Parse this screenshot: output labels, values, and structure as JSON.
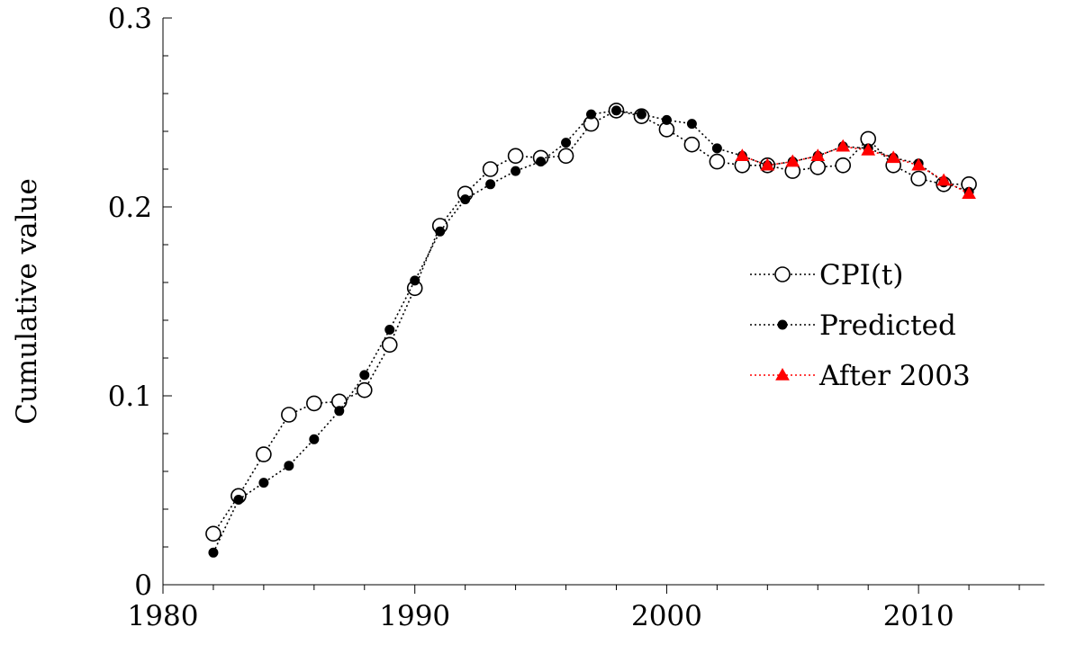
{
  "chart_data": {
    "type": "line",
    "title": "",
    "xlabel": "",
    "ylabel": "Cumulative value",
    "xlim": [
      1980,
      2015
    ],
    "ylim": [
      0,
      0.3
    ],
    "xticks": [
      1980,
      1990,
      2000,
      2010
    ],
    "xtick_labels": [
      "1980",
      "1990",
      "2000",
      "2010"
    ],
    "yticks": [
      0,
      0.1,
      0.2,
      0.3
    ],
    "ytick_labels": [
      "0",
      "0.1",
      "0.2",
      "0.3"
    ],
    "grid": false,
    "legend_position": "right",
    "series": [
      {
        "name": "CPI(t)",
        "marker": "open-circle",
        "color": "#000000",
        "x": [
          1982,
          1983,
          1984,
          1985,
          1986,
          1987,
          1988,
          1989,
          1990,
          1991,
          1992,
          1993,
          1994,
          1995,
          1996,
          1997,
          1998,
          1999,
          2000,
          2001,
          2002,
          2003,
          2004,
          2005,
          2006,
          2007,
          2008,
          2009,
          2010,
          2011,
          2012
        ],
        "y": [
          0.027,
          0.047,
          0.069,
          0.09,
          0.096,
          0.097,
          0.103,
          0.127,
          0.157,
          0.19,
          0.207,
          0.22,
          0.227,
          0.226,
          0.227,
          0.244,
          0.251,
          0.248,
          0.241,
          0.233,
          0.224,
          0.222,
          0.222,
          0.219,
          0.221,
          0.222,
          0.236,
          0.222,
          0.215,
          0.212,
          0.212
        ]
      },
      {
        "name": "Predicted",
        "marker": "filled-circle",
        "color": "#000000",
        "x": [
          1982,
          1983,
          1984,
          1985,
          1986,
          1987,
          1988,
          1989,
          1990,
          1991,
          1992,
          1993,
          1994,
          1995,
          1996,
          1997,
          1998,
          1999,
          2000,
          2001,
          2002,
          2003,
          2004,
          2005,
          2006,
          2007,
          2008,
          2009,
          2010,
          2011,
          2012
        ],
        "y": [
          0.017,
          0.045,
          0.054,
          0.063,
          0.077,
          0.092,
          0.111,
          0.135,
          0.161,
          0.187,
          0.204,
          0.212,
          0.219,
          0.224,
          0.234,
          0.249,
          0.251,
          0.249,
          0.246,
          0.244,
          0.231,
          0.227,
          0.222,
          0.224,
          0.227,
          0.232,
          0.231,
          0.226,
          0.223,
          0.213,
          0.208
        ]
      },
      {
        "name": "After 2003",
        "marker": "filled-triangle",
        "color": "#ff0000",
        "x": [
          2003,
          2004,
          2005,
          2006,
          2007,
          2008,
          2009,
          2010,
          2011,
          2012
        ],
        "y": [
          0.227,
          0.222,
          0.224,
          0.227,
          0.232,
          0.23,
          0.226,
          0.222,
          0.214,
          0.207
        ]
      }
    ]
  }
}
